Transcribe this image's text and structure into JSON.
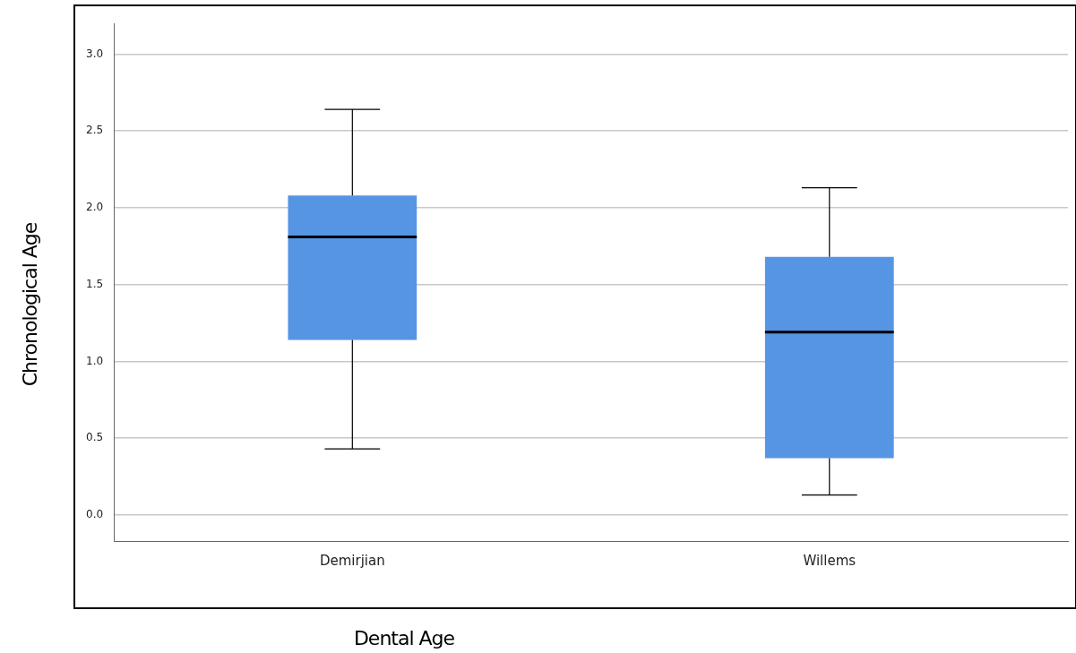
{
  "chart_data": {
    "type": "box",
    "xlabel": "Dental Age",
    "ylabel": "Chronological Age",
    "categories": [
      "Demirjian",
      "Willems"
    ],
    "color": "#5595e3",
    "boxes": [
      {
        "low": 0.43,
        "q1": 1.14,
        "median": 1.81,
        "q3": 2.08,
        "high": 2.64
      },
      {
        "low": 0.13,
        "q1": 0.37,
        "median": 1.19,
        "q3": 1.68,
        "high": 2.13
      }
    ],
    "ylim": [
      -0.17,
      3.2
    ],
    "yticks": [
      {
        "value": 0,
        "label": "0.0"
      },
      {
        "value": 0.5,
        "label": "0.5"
      },
      {
        "value": 1,
        "label": "1.0"
      },
      {
        "value": 1.5,
        "label": "1.5"
      },
      {
        "value": 2,
        "label": "2.0"
      },
      {
        "value": 2.5,
        "label": "2.5"
      },
      {
        "value": 3,
        "label": "3.0"
      }
    ],
    "grid": "y",
    "legend": false
  }
}
